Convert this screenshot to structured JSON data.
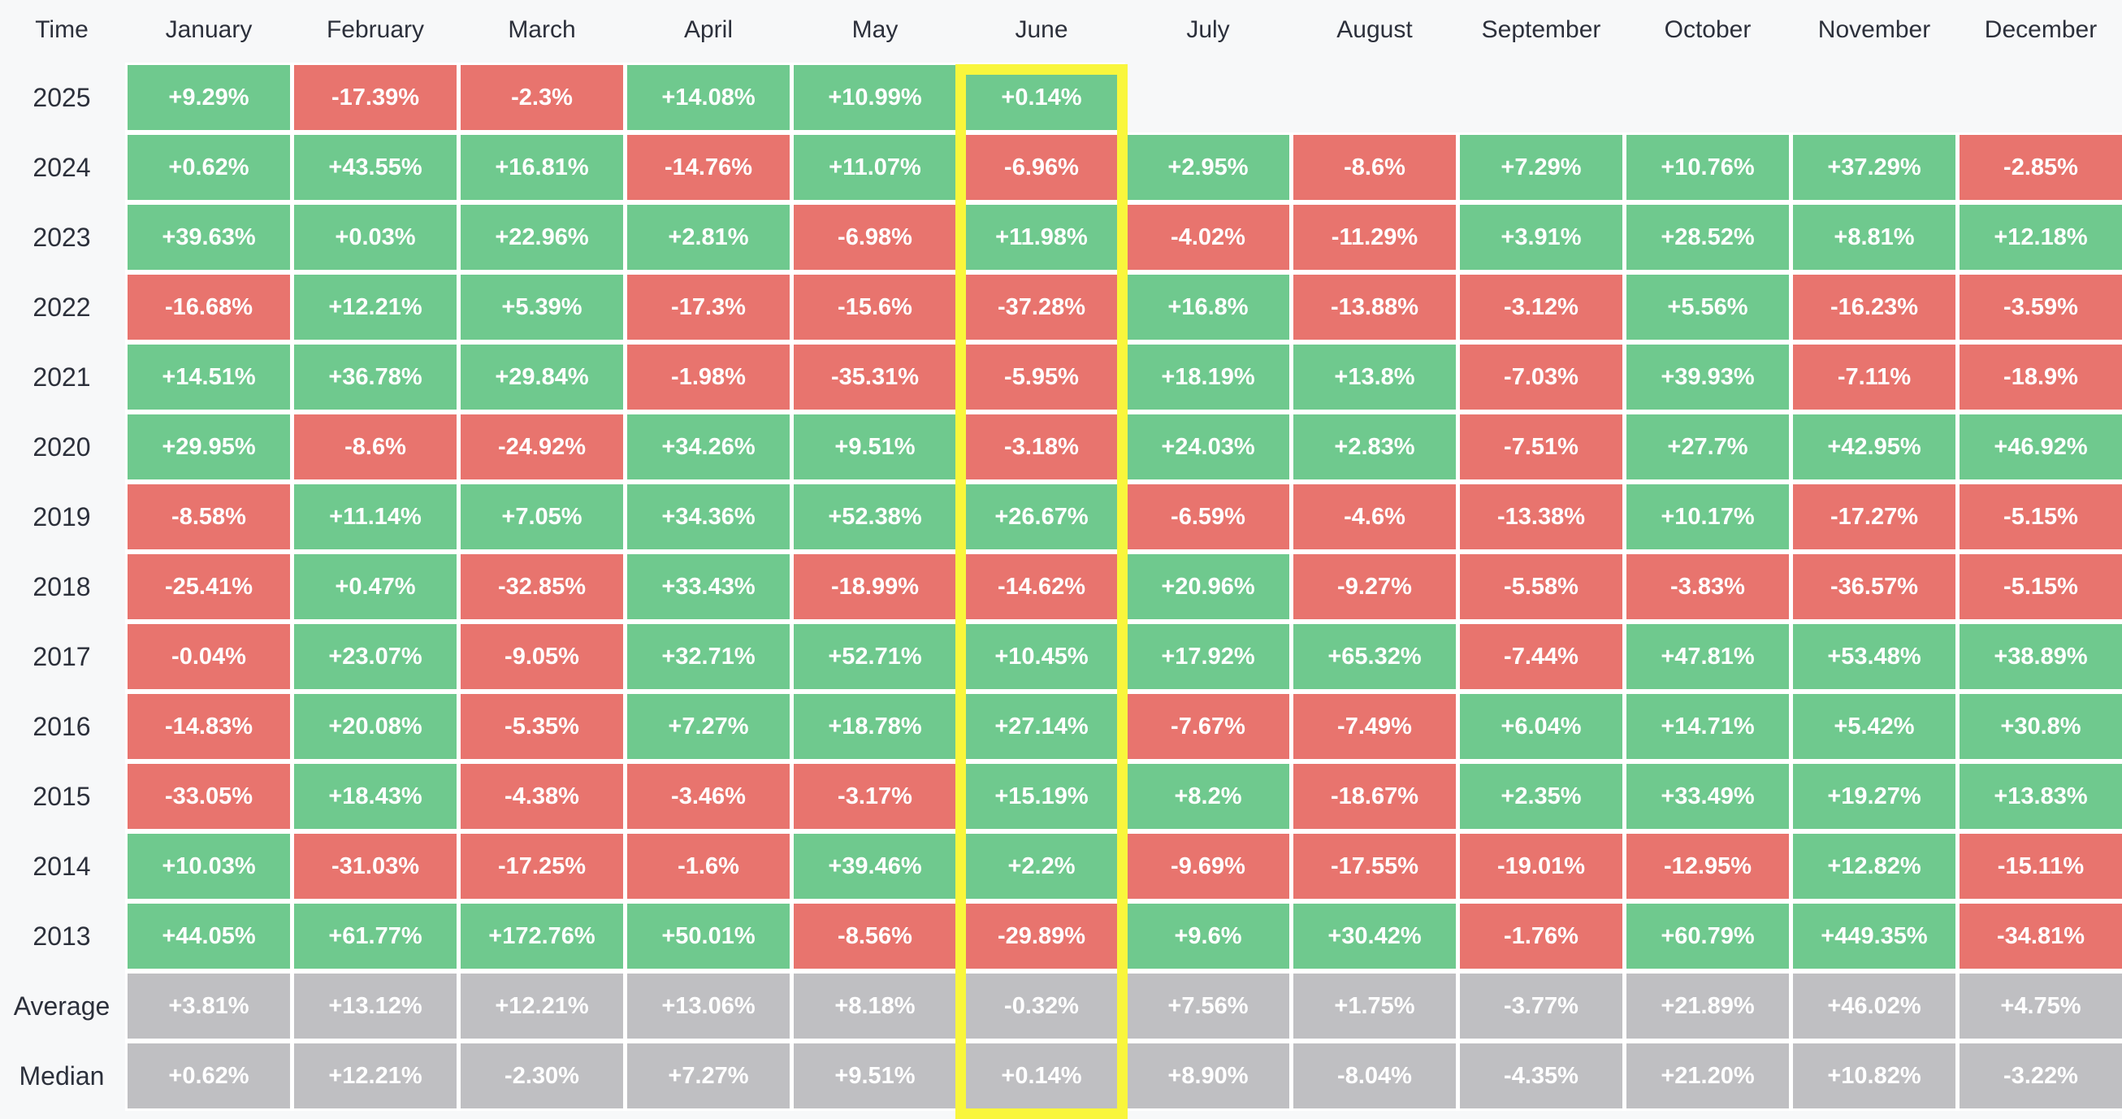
{
  "colors": {
    "background": "#f7f8f9",
    "gap": "#ffffff",
    "positive": "#6fc98e",
    "negative": "#e8746e",
    "stat": "#bfbfc2",
    "highlight": "#f9f63c",
    "label_text": "#2c303b",
    "cell_text": "#ffffff"
  },
  "chart_data": {
    "type": "heatmap",
    "corner_label": "Time",
    "columns": [
      "January",
      "February",
      "March",
      "April",
      "May",
      "June",
      "July",
      "August",
      "September",
      "October",
      "November",
      "December"
    ],
    "highlighted_column": "June",
    "legend_position": "none",
    "rows": [
      {
        "label": "2025",
        "type": "year",
        "values": [
          "+9.29%",
          "-17.39%",
          "-2.3%",
          "+14.08%",
          "+10.99%",
          "+0.14%",
          "",
          "",
          "",
          "",
          "",
          ""
        ]
      },
      {
        "label": "2024",
        "type": "year",
        "values": [
          "+0.62%",
          "+43.55%",
          "+16.81%",
          "-14.76%",
          "+11.07%",
          "-6.96%",
          "+2.95%",
          "-8.6%",
          "+7.29%",
          "+10.76%",
          "+37.29%",
          "-2.85%"
        ]
      },
      {
        "label": "2023",
        "type": "year",
        "values": [
          "+39.63%",
          "+0.03%",
          "+22.96%",
          "+2.81%",
          "-6.98%",
          "+11.98%",
          "-4.02%",
          "-11.29%",
          "+3.91%",
          "+28.52%",
          "+8.81%",
          "+12.18%"
        ]
      },
      {
        "label": "2022",
        "type": "year",
        "values": [
          "-16.68%",
          "+12.21%",
          "+5.39%",
          "-17.3%",
          "-15.6%",
          "-37.28%",
          "+16.8%",
          "-13.88%",
          "-3.12%",
          "+5.56%",
          "-16.23%",
          "-3.59%"
        ]
      },
      {
        "label": "2021",
        "type": "year",
        "values": [
          "+14.51%",
          "+36.78%",
          "+29.84%",
          "-1.98%",
          "-35.31%",
          "-5.95%",
          "+18.19%",
          "+13.8%",
          "-7.03%",
          "+39.93%",
          "-7.11%",
          "-18.9%"
        ]
      },
      {
        "label": "2020",
        "type": "year",
        "values": [
          "+29.95%",
          "-8.6%",
          "-24.92%",
          "+34.26%",
          "+9.51%",
          "-3.18%",
          "+24.03%",
          "+2.83%",
          "-7.51%",
          "+27.7%",
          "+42.95%",
          "+46.92%"
        ]
      },
      {
        "label": "2019",
        "type": "year",
        "values": [
          "-8.58%",
          "+11.14%",
          "+7.05%",
          "+34.36%",
          "+52.38%",
          "+26.67%",
          "-6.59%",
          "-4.6%",
          "-13.38%",
          "+10.17%",
          "-17.27%",
          "-5.15%"
        ]
      },
      {
        "label": "2018",
        "type": "year",
        "values": [
          "-25.41%",
          "+0.47%",
          "-32.85%",
          "+33.43%",
          "-18.99%",
          "-14.62%",
          "+20.96%",
          "-9.27%",
          "-5.58%",
          "-3.83%",
          "-36.57%",
          "-5.15%"
        ]
      },
      {
        "label": "2017",
        "type": "year",
        "values": [
          "-0.04%",
          "+23.07%",
          "-9.05%",
          "+32.71%",
          "+52.71%",
          "+10.45%",
          "+17.92%",
          "+65.32%",
          "-7.44%",
          "+47.81%",
          "+53.48%",
          "+38.89%"
        ]
      },
      {
        "label": "2016",
        "type": "year",
        "values": [
          "-14.83%",
          "+20.08%",
          "-5.35%",
          "+7.27%",
          "+18.78%",
          "+27.14%",
          "-7.67%",
          "-7.49%",
          "+6.04%",
          "+14.71%",
          "+5.42%",
          "+30.8%"
        ]
      },
      {
        "label": "2015",
        "type": "year",
        "values": [
          "-33.05%",
          "+18.43%",
          "-4.38%",
          "-3.46%",
          "-3.17%",
          "+15.19%",
          "+8.2%",
          "-18.67%",
          "+2.35%",
          "+33.49%",
          "+19.27%",
          "+13.83%"
        ]
      },
      {
        "label": "2014",
        "type": "year",
        "values": [
          "+10.03%",
          "-31.03%",
          "-17.25%",
          "-1.6%",
          "+39.46%",
          "+2.2%",
          "-9.69%",
          "-17.55%",
          "-19.01%",
          "-12.95%",
          "+12.82%",
          "-15.11%"
        ]
      },
      {
        "label": "2013",
        "type": "year",
        "values": [
          "+44.05%",
          "+61.77%",
          "+172.76%",
          "+50.01%",
          "-8.56%",
          "-29.89%",
          "+9.6%",
          "+30.42%",
          "-1.76%",
          "+60.79%",
          "+449.35%",
          "-34.81%"
        ]
      },
      {
        "label": "Average",
        "type": "stat",
        "values": [
          "+3.81%",
          "+13.12%",
          "+12.21%",
          "+13.06%",
          "+8.18%",
          "-0.32%",
          "+7.56%",
          "+1.75%",
          "-3.77%",
          "+21.89%",
          "+46.02%",
          "+4.75%"
        ]
      },
      {
        "label": "Median",
        "type": "stat",
        "values": [
          "+0.62%",
          "+12.21%",
          "-2.30%",
          "+7.27%",
          "+9.51%",
          "+0.14%",
          "+8.90%",
          "-8.04%",
          "-4.35%",
          "+21.20%",
          "+10.82%",
          "-3.22%"
        ]
      }
    ]
  }
}
